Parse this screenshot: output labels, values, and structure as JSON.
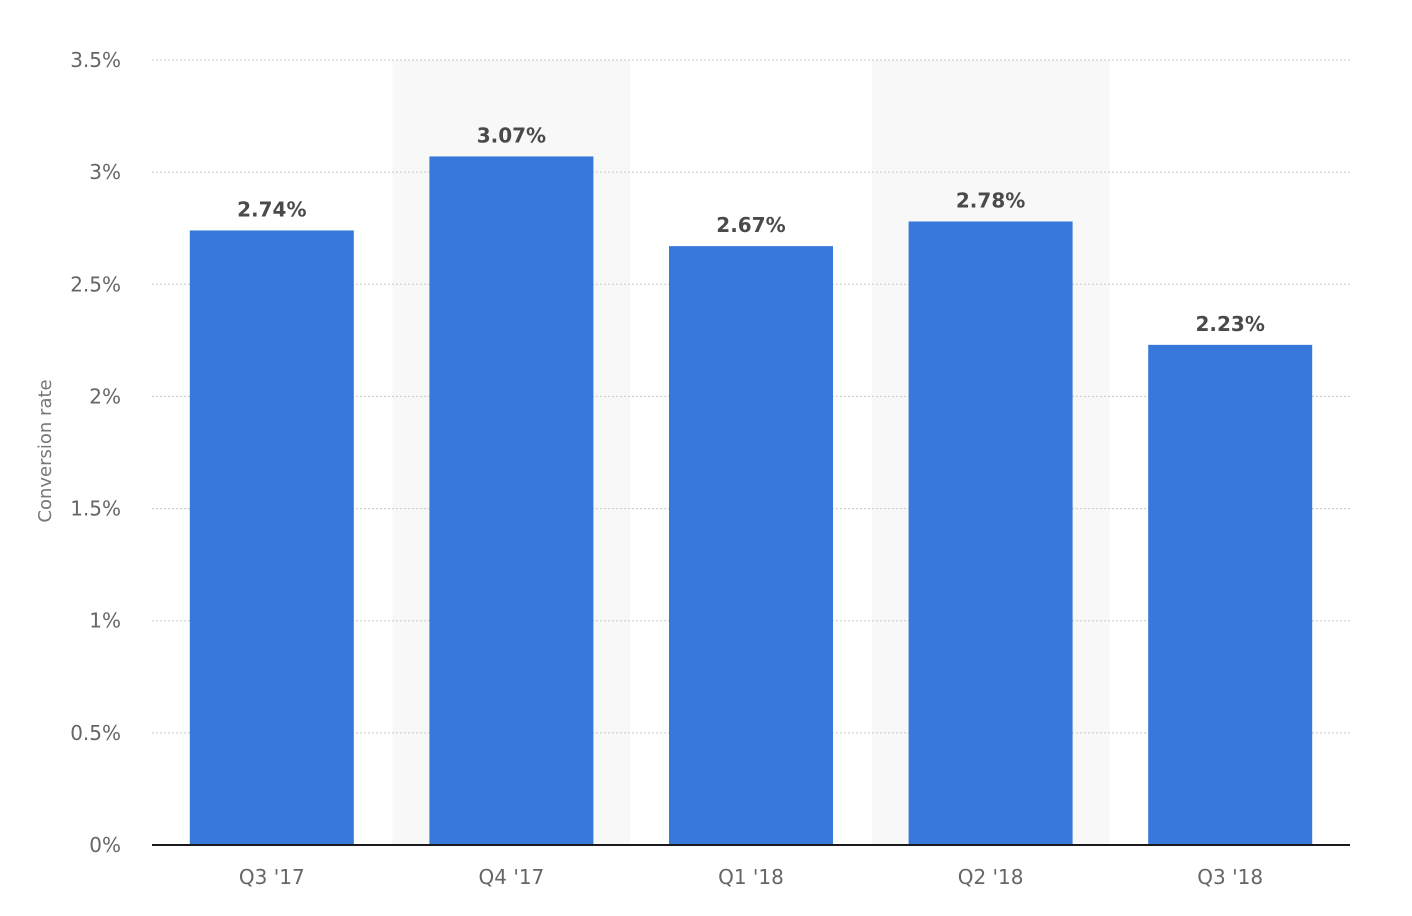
{
  "chart_data": {
    "type": "bar",
    "categories": [
      "Q3 '17",
      "Q4 '17",
      "Q1 '18",
      "Q2 '18",
      "Q3 '18"
    ],
    "values": [
      2.74,
      3.07,
      2.67,
      2.78,
      2.23
    ],
    "data_labels": [
      "2.74%",
      "3.07%",
      "2.67%",
      "2.78%",
      "2.23%"
    ],
    "title": "",
    "xlabel": "",
    "ylabel": "Conversion rate",
    "ylim": [
      0,
      3.5
    ],
    "yticks": [
      0,
      0.5,
      1,
      1.5,
      2,
      2.5,
      3,
      3.5
    ],
    "ytick_labels": [
      "0%",
      "0.5%",
      "1%",
      "1.5%",
      "2%",
      "2.5%",
      "3%",
      "3.5%"
    ],
    "grid": true,
    "alternating_bands": true,
    "bar_color": "#3878da",
    "band_color": "#f8f8f8"
  }
}
